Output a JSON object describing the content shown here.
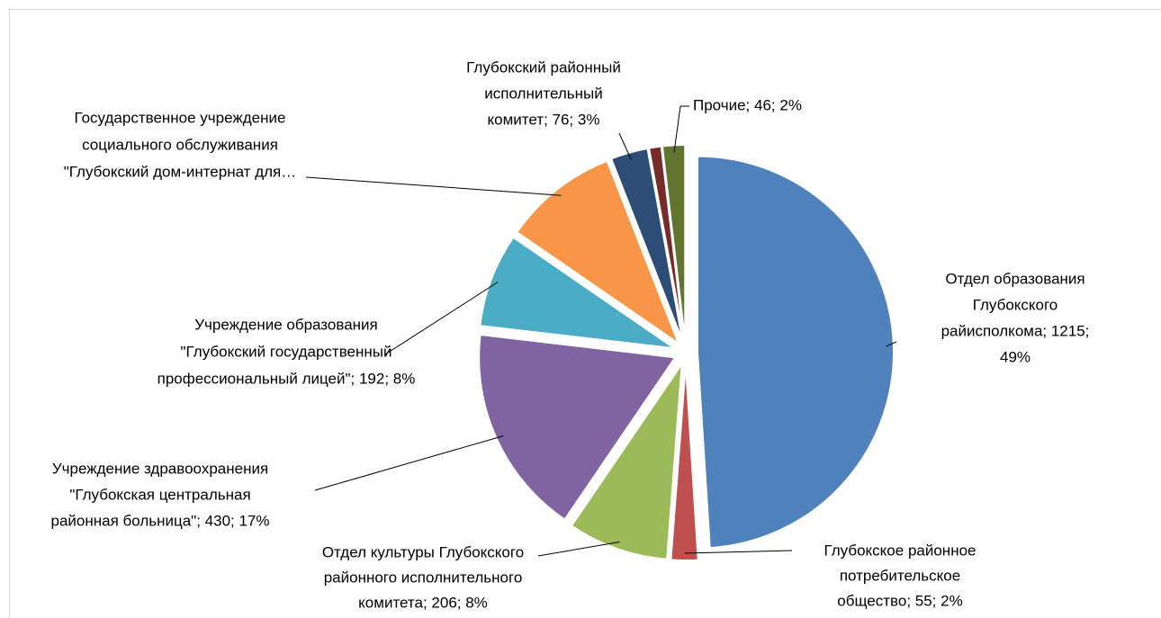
{
  "chart_data": {
    "type": "pie",
    "values": [
      1215,
      55,
      206,
      430,
      192,
      235,
      76,
      25,
      46
    ],
    "value_labels": [
      [
        "Отдел образования",
        "Глубокского",
        "райисполкома; 1215;",
        "49%"
      ],
      [
        "Глубокское районное",
        "потребительское",
        "общество; 55; 2%"
      ],
      [
        "Отдел культуры Глубокского",
        "районного исполнительного",
        "комитета; 206; 8%"
      ],
      [
        "Учреждение здравоохранения",
        "\"Глубокская центральная",
        "районная больница\"; 430; 17%"
      ],
      [
        "Учреждение образования",
        "\"Глубокский государственный",
        "профессиональный лицей\"; 192; 8%"
      ],
      [
        "Государственное учреждение",
        "социального обслуживания",
        "\"Глубокский дом-интернат для…"
      ],
      [
        "Глубокский районный",
        "исполнительный",
        "комитет; 76; 3%"
      ],
      null,
      [
        "Прочие; 46; 2%"
      ]
    ],
    "colors": [
      "#4f81bd",
      "#c0504d",
      "#9bbb59",
      "#8064a2",
      "#4bacc6",
      "#f79646",
      "#2c4d75",
      "#772c2a",
      "#5f7530"
    ]
  }
}
